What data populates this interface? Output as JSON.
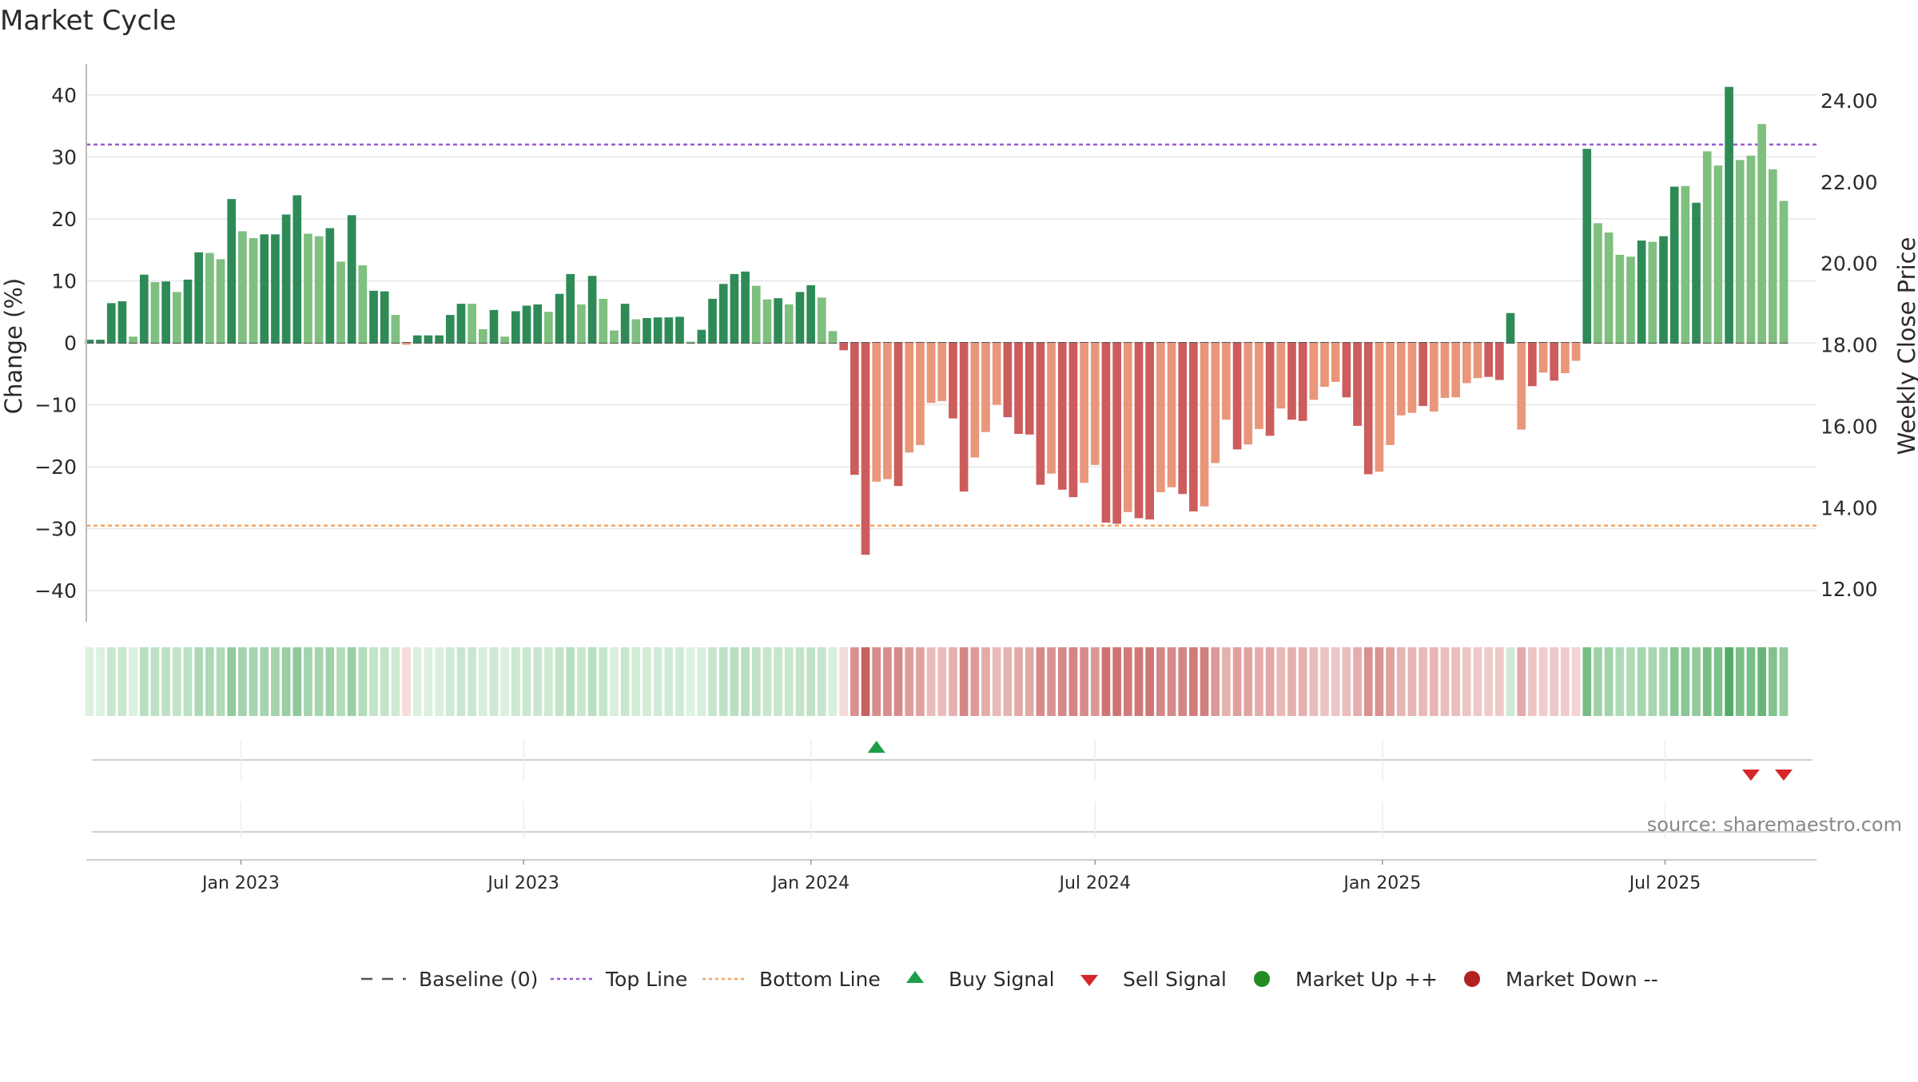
{
  "title": "Market Cycle",
  "source": "source: sharemaestro.com",
  "colors": {
    "up_strong": "#2e8b57",
    "up_light": "#7fbf7f",
    "down_strong": "#cd5c5c",
    "down_light": "#e9967a",
    "top_line": "#9b59d0",
    "bottom_line": "#f4a460",
    "baseline": "#555555",
    "buy": "#1e9e4a",
    "sell": "#d62728",
    "market_up": "#228b22",
    "market_down": "#b22222",
    "grid": "#e6e6e6",
    "text": "#2a2a2a",
    "source": "#888888"
  },
  "legend": [
    {
      "key": "baseline",
      "label": "Baseline (0)",
      "icon": "dashed-line-icon"
    },
    {
      "key": "top_line",
      "label": "Top Line",
      "icon": "dotted-line-icon"
    },
    {
      "key": "bottom_line",
      "label": "Bottom Line",
      "icon": "dotted-line-icon"
    },
    {
      "key": "buy",
      "label": "Buy Signal",
      "icon": "triangle-up-icon"
    },
    {
      "key": "sell",
      "label": "Sell Signal",
      "icon": "triangle-down-icon"
    },
    {
      "key": "market_up",
      "label": "Market Up ++",
      "icon": "circle-icon"
    },
    {
      "key": "market_down",
      "label": "Market Down --",
      "icon": "circle-icon"
    }
  ],
  "chart_data": {
    "type": "bar",
    "title": "Market Cycle",
    "ylabel": "Change (%)",
    "y2label": "Weekly Close Price",
    "ylim": [
      -45,
      45
    ],
    "y2lim": [
      11.2,
      24.9
    ],
    "yticks": [
      40,
      30,
      20,
      10,
      0,
      -10,
      -20,
      -30,
      -40
    ],
    "ytick_labels": [
      "40",
      "30",
      "20",
      "10",
      "0",
      "−10",
      "−20",
      "−30",
      "−40"
    ],
    "y2ticks": [
      24,
      22,
      20,
      18,
      16,
      14,
      12
    ],
    "y2tick_labels": [
      "24.00",
      "22.00",
      "20.00",
      "18.00",
      "16.00",
      "14.00",
      "12.00"
    ],
    "xlim": [
      "2022-09-24",
      "2025-10-06"
    ],
    "xticks": [
      "2023-01-01",
      "2023-07-01",
      "2024-01-01",
      "2024-07-01",
      "2025-01-01",
      "2025-07-01"
    ],
    "xtick_labels": [
      "Jan 2023",
      "Jul 2023",
      "Jan 2024",
      "Jul 2024",
      "Jan 2025",
      "Jul 2025"
    ],
    "start_date": "2022-09-26",
    "top_line": 32,
    "bottom_line": -29.5,
    "grid": true,
    "legend_position": "bottom",
    "values": [
      0.5,
      0.5,
      6.4,
      6.7,
      1.0,
      11.0,
      9.8,
      9.9,
      8.2,
      10.2,
      14.6,
      14.5,
      13.5,
      23.2,
      18.0,
      16.9,
      17.5,
      17.5,
      20.7,
      23.8,
      17.6,
      17.2,
      18.5,
      13.1,
      20.6,
      12.5,
      8.4,
      8.3,
      4.5,
      -0.3,
      1.2,
      1.2,
      1.2,
      4.5,
      6.3,
      6.3,
      2.2,
      5.3,
      1.0,
      5.1,
      6.0,
      6.2,
      5.0,
      7.9,
      11.1,
      6.2,
      10.8,
      7.1,
      2.0,
      6.3,
      3.8,
      4.0,
      4.1,
      4.1,
      4.2,
      0.2,
      2.1,
      7.1,
      9.5,
      11.1,
      11.5,
      9.2,
      7.0,
      7.2,
      6.2,
      8.2,
      9.3,
      7.3,
      1.9,
      -1.2,
      -21.3,
      -34.2,
      -22.4,
      -22.0,
      -23.1,
      -17.7,
      -16.5,
      -9.7,
      -9.4,
      -12.2,
      -24.0,
      -18.5,
      -14.4,
      -10.0,
      -12.0,
      -14.7,
      -14.8,
      -22.9,
      -21.1,
      -23.7,
      -24.9,
      -22.6,
      -19.7,
      -29.0,
      -29.2,
      -27.3,
      -28.3,
      -28.5,
      -24.1,
      -23.3,
      -24.4,
      -27.2,
      -26.4,
      -19.4,
      -12.4,
      -17.2,
      -16.4,
      -13.9,
      -15.0,
      -10.6,
      -12.4,
      -12.6,
      -9.2,
      -7.1,
      -6.3,
      -8.8,
      -13.4,
      -21.2,
      -20.8,
      -16.5,
      -11.7,
      -11.3,
      -10.2,
      -11.1,
      -8.9,
      -8.8,
      -6.5,
      -5.7,
      -5.5,
      -6.0,
      4.8,
      -14.0,
      -7.0,
      -4.8,
      -6.1,
      -4.9,
      -2.9,
      31.3,
      19.3,
      17.8,
      14.2,
      13.9,
      16.5,
      16.3,
      17.2,
      25.2,
      25.3,
      22.6,
      30.9,
      28.6,
      41.3,
      29.5,
      30.2,
      35.3,
      28.0,
      22.9
    ],
    "strong": [
      1,
      1,
      1,
      1,
      0,
      1,
      0,
      1,
      0,
      1,
      1,
      0,
      0,
      1,
      0,
      0,
      1,
      1,
      1,
      1,
      0,
      0,
      1,
      0,
      1,
      0,
      1,
      1,
      0,
      0,
      1,
      1,
      1,
      1,
      1,
      0,
      0,
      1,
      0,
      1,
      1,
      1,
      0,
      1,
      1,
      0,
      1,
      0,
      0,
      1,
      0,
      1,
      1,
      1,
      1,
      0,
      1,
      1,
      1,
      1,
      1,
      0,
      0,
      1,
      0,
      1,
      1,
      0,
      0,
      1,
      1,
      1,
      0,
      0,
      1,
      0,
      0,
      0,
      0,
      1,
      1,
      0,
      0,
      0,
      1,
      1,
      1,
      1,
      0,
      1,
      1,
      0,
      0,
      1,
      1,
      0,
      1,
      1,
      0,
      0,
      1,
      1,
      0,
      0,
      0,
      1,
      0,
      0,
      1,
      0,
      1,
      1,
      0,
      0,
      0,
      1,
      1,
      1,
      0,
      0,
      0,
      0,
      1,
      0,
      0,
      0,
      0,
      0,
      1,
      1,
      1,
      0,
      1,
      0,
      1,
      0,
      0,
      1,
      0,
      0,
      0,
      0,
      1,
      0,
      1,
      1,
      0,
      1,
      0,
      0,
      1,
      0,
      0
    ],
    "buy_signals": [
      "2024-02-12"
    ],
    "sell_signals": [
      "2025-08-25",
      "2025-09-15"
    ]
  }
}
